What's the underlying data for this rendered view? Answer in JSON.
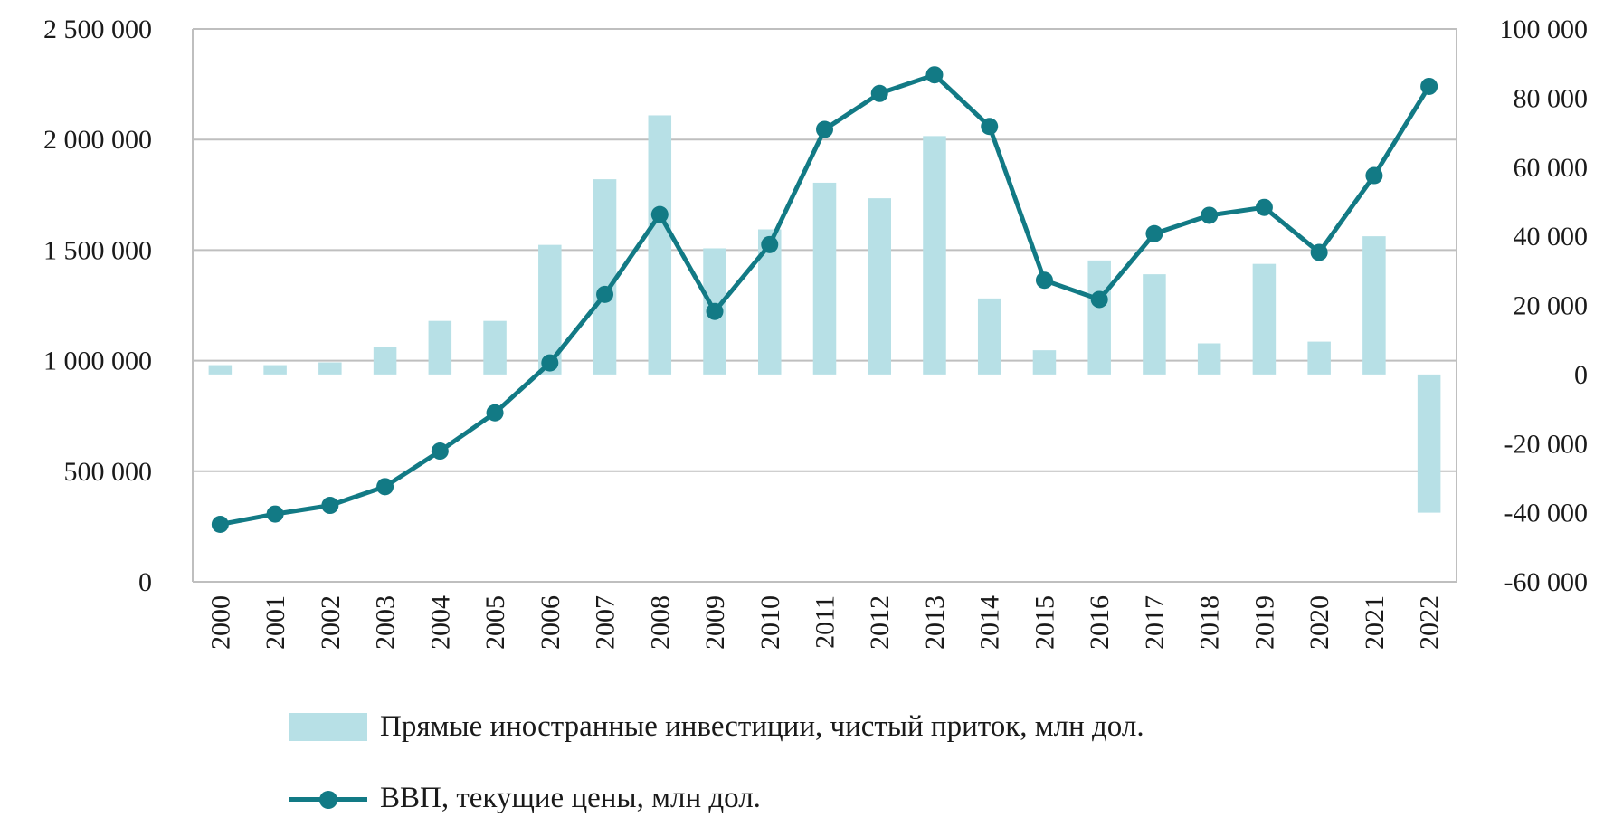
{
  "chart_data": {
    "type": "bar+line",
    "categories": [
      "2000",
      "2001",
      "2002",
      "2003",
      "2004",
      "2005",
      "2006",
      "2007",
      "2008",
      "2009",
      "2010",
      "2011",
      "2012",
      "2013",
      "2014",
      "2015",
      "2016",
      "2017",
      "2018",
      "2019",
      "2020",
      "2021",
      "2022"
    ],
    "series": [
      {
        "name": "Прямые иностранные инвестиции, чистый приток, млн дол.",
        "type": "bar",
        "axis": "right",
        "color": "#b7e0e6",
        "values": [
          2700,
          2700,
          3500,
          8000,
          15500,
          15500,
          37500,
          56500,
          75000,
          36500,
          42000,
          55500,
          51000,
          69000,
          22000,
          7000,
          33000,
          29000,
          9000,
          32000,
          9500,
          40000,
          -40000
        ]
      },
      {
        "name": "ВВП, текущие цены, млн дол.",
        "type": "line",
        "axis": "left",
        "color": "#127a85",
        "values": [
          259700,
          306600,
          345500,
          430300,
          591000,
          764000,
          989900,
          1299700,
          1660800,
          1222600,
          1524900,
          2045900,
          2208300,
          2292500,
          2059200,
          1363500,
          1276800,
          1574200,
          1657300,
          1693100,
          1489400,
          1836900,
          2240400
        ]
      }
    ],
    "y_left": {
      "min": 0,
      "max": 2500000,
      "step": 500000,
      "tick_labels": [
        "0",
        "500 000",
        "1 000 000",
        "1 500 000",
        "2 000 000",
        "2 500 000"
      ]
    },
    "y_right": {
      "min": -60000,
      "max": 100000,
      "step": 20000,
      "tick_labels": [
        "-60 000",
        "-40 000",
        "-20 000",
        "0",
        "20 000",
        "40 000",
        "60 000",
        "80 000",
        "100 000"
      ]
    },
    "grid": true,
    "legend_position": "bottom",
    "title": "",
    "xlabel": "",
    "ylabel": ""
  },
  "legend": {
    "bar_label": "Прямые иностранные инвестиции, чистый приток, млн дол.",
    "line_label": "ВВП, текущие цены, млн дол."
  }
}
